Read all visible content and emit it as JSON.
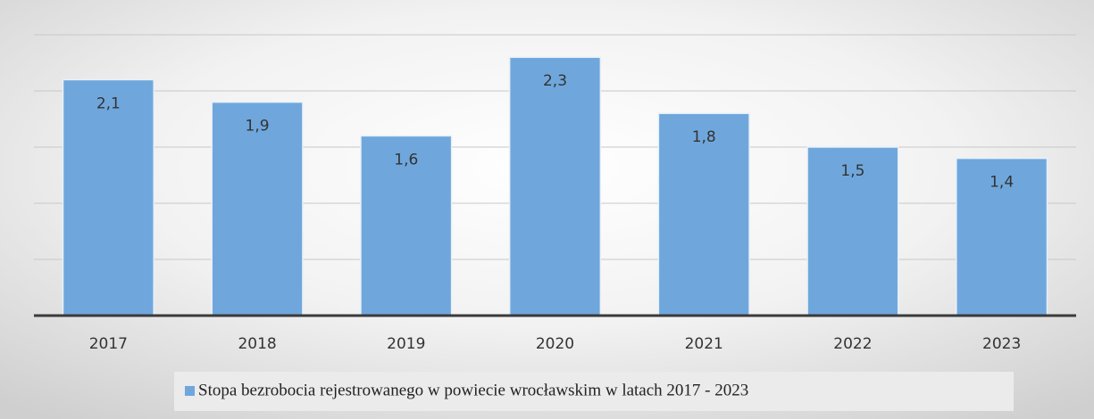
{
  "chart_data": {
    "type": "bar",
    "categories": [
      "2017",
      "2018",
      "2019",
      "2020",
      "2021",
      "2022",
      "2023"
    ],
    "series": [
      {
        "name": "Stopa bezrobocia rejestrowanego w powiecie wrocławskim w latach 2017 - 2023",
        "color": "#6fa7dc",
        "values": [
          2.1,
          1.9,
          1.6,
          2.3,
          1.8,
          1.5,
          1.4
        ],
        "value_labels": [
          "2,1",
          "1,9",
          "1,6",
          "2,3",
          "1,8",
          "1,5",
          "1,4"
        ]
      }
    ],
    "ylim": [
      0,
      2.5
    ],
    "yticks": [
      0,
      0.5,
      1,
      1.5,
      2,
      2.5
    ],
    "grid": true,
    "legend": "bottom"
  }
}
